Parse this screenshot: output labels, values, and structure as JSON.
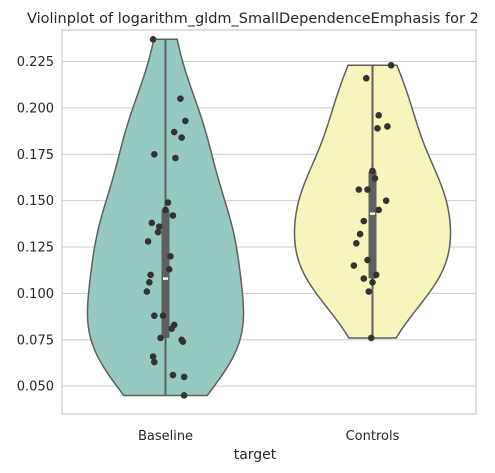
{
  "chart_data": {
    "type": "violin",
    "title": "Violinplot of logarithm_gldm_SmallDependenceEmphasis for 2",
    "xlabel": "target",
    "ylabel": "",
    "ylim": [
      0.035,
      0.242
    ],
    "yticks": [
      0.05,
      0.075,
      0.1,
      0.125,
      0.15,
      0.175,
      0.2,
      0.225
    ],
    "ytick_labels": [
      "0.050",
      "0.075",
      "0.100",
      "0.125",
      "0.150",
      "0.175",
      "0.200",
      "0.225"
    ],
    "grid": true,
    "categories": [
      "Baseline",
      "Controls"
    ],
    "colors": [
      "#96cac1",
      "#f6f6bc"
    ],
    "series": [
      {
        "category": "Baseline",
        "min": 0.045,
        "max": 0.237,
        "q1": 0.076,
        "median": 0.108,
        "q3": 0.145,
        "points": [
          0.237,
          0.205,
          0.193,
          0.187,
          0.184,
          0.175,
          0.173,
          0.149,
          0.145,
          0.142,
          0.138,
          0.136,
          0.133,
          0.128,
          0.12,
          0.113,
          0.11,
          0.106,
          0.101,
          0.088,
          0.088,
          0.083,
          0.081,
          0.076,
          0.075,
          0.074,
          0.066,
          0.063,
          0.056,
          0.055,
          0.045
        ],
        "jitter": [
          -0.1,
          0.12,
          0.16,
          0.07,
          0.13,
          -0.09,
          0.08,
          0.02,
          0.0,
          0.06,
          -0.11,
          -0.05,
          -0.06,
          -0.14,
          0.04,
          0.03,
          -0.12,
          -0.13,
          -0.15,
          -0.09,
          -0.02,
          0.07,
          0.05,
          -0.04,
          0.13,
          0.14,
          -0.1,
          -0.09,
          0.06,
          0.15,
          0.15
        ]
      },
      {
        "category": "Controls",
        "min": 0.076,
        "max": 0.223,
        "q1": 0.108,
        "median": 0.143,
        "q3": 0.166,
        "points": [
          0.223,
          0.216,
          0.196,
          0.19,
          0.189,
          0.166,
          0.162,
          0.156,
          0.156,
          0.15,
          0.145,
          0.139,
          0.132,
          0.127,
          0.118,
          0.115,
          0.11,
          0.108,
          0.106,
          0.101,
          0.076
        ],
        "jitter": [
          0.15,
          -0.05,
          0.05,
          0.12,
          0.04,
          0.0,
          0.02,
          -0.11,
          -0.04,
          0.11,
          0.05,
          -0.07,
          -0.1,
          -0.13,
          -0.04,
          -0.15,
          0.03,
          -0.07,
          0.0,
          -0.03,
          -0.01
        ]
      }
    ]
  }
}
